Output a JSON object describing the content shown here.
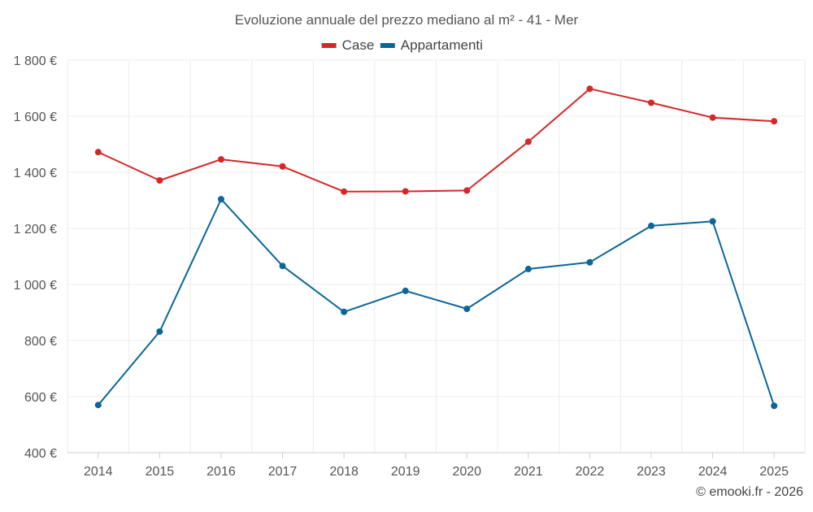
{
  "chart_data": {
    "type": "line",
    "title": "Evoluzione annuale del prezzo mediano al m² - 41 - Mer",
    "xlabel": "",
    "ylabel": "",
    "categories": [
      "2014",
      "2015",
      "2016",
      "2017",
      "2018",
      "2019",
      "2020",
      "2021",
      "2022",
      "2023",
      "2024",
      "2025"
    ],
    "ylim": [
      400,
      1800
    ],
    "yticks": [
      400,
      600,
      800,
      1000,
      1200,
      1400,
      1600,
      1800
    ],
    "ytick_labels": [
      "400 €",
      "600 €",
      "800 €",
      "1 000 €",
      "1 200 €",
      "1 400 €",
      "1 600 €",
      "1 800 €"
    ],
    "grid": true,
    "legend_position": "top-center",
    "series": [
      {
        "name": "Case",
        "color": "#d62728",
        "values": [
          1472,
          1371,
          1446,
          1421,
          1331,
          1332,
          1335,
          1509,
          1698,
          1648,
          1595,
          1582
        ]
      },
      {
        "name": "Appartamenti",
        "color": "#0a6699",
        "values": [
          570,
          832,
          1304,
          1066,
          902,
          977,
          913,
          1055,
          1079,
          1209,
          1225,
          567
        ]
      }
    ]
  },
  "credit": "© emooki.fr - 2026"
}
